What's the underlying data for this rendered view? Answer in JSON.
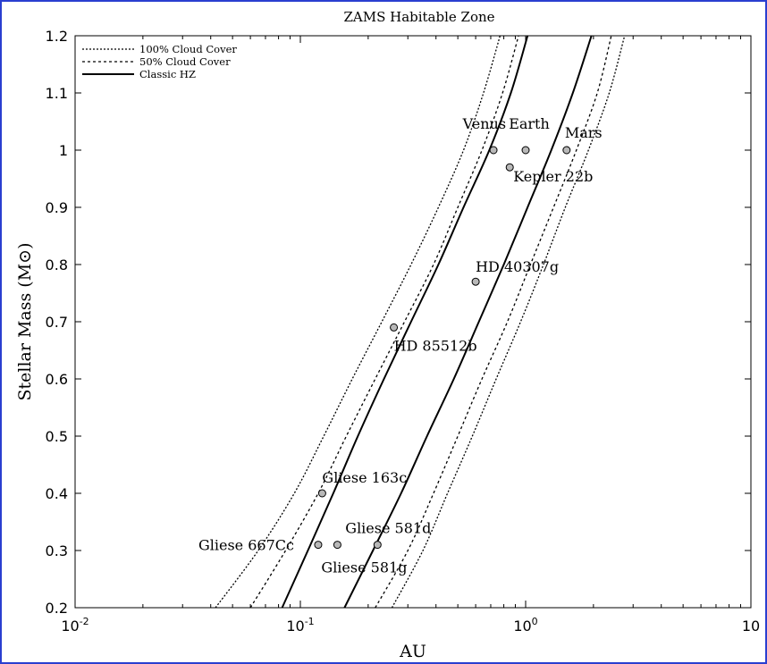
{
  "chart_data": {
    "type": "line",
    "title": "ZAMS Habitable Zone",
    "xlabel": "AU",
    "ylabel": "Stellar Mass (M⊙)",
    "xscale": "log",
    "xlim": [
      0.01,
      10
    ],
    "ylim": [
      0.2,
      1.2
    ],
    "x_ticks": [
      0.01,
      0.1,
      1,
      10
    ],
    "x_tick_labels": [
      {
        "base": "10",
        "exp": "-2"
      },
      {
        "base": "10",
        "exp": "-1"
      },
      {
        "base": "10",
        "exp": "0"
      },
      {
        "base": "10",
        "exp": ""
      }
    ],
    "y_ticks": [
      0.2,
      0.3,
      0.4,
      0.5,
      0.6,
      0.7,
      0.8,
      0.9,
      1.0,
      1.1,
      1.2
    ],
    "y_tick_labels": [
      "0.2",
      "0.3",
      "0.4",
      "0.5",
      "0.6",
      "0.7",
      "0.8",
      "0.9",
      "1",
      "1.1",
      "1.2"
    ],
    "grid": false,
    "legend_position": "top-left",
    "legend": [
      {
        "label": "100% Cloud Cover",
        "style": "dotted"
      },
      {
        "label": "50% Cloud Cover",
        "style": "dashed"
      },
      {
        "label": "Classic HZ",
        "style": "solid"
      }
    ],
    "series": [
      {
        "group": "100% Cloud Cover",
        "style": "dotted",
        "points": [
          [
            0.042,
            0.2
          ],
          [
            0.065,
            0.3
          ],
          [
            0.094,
            0.4
          ],
          [
            0.127,
            0.5
          ],
          [
            0.17,
            0.6
          ],
          [
            0.23,
            0.7
          ],
          [
            0.31,
            0.8
          ],
          [
            0.41,
            0.9
          ],
          [
            0.53,
            1.0
          ],
          [
            0.65,
            1.1
          ],
          [
            0.77,
            1.2
          ]
        ]
      },
      {
        "group": "100% Cloud Cover",
        "style": "dotted",
        "points": [
          [
            0.255,
            0.2
          ],
          [
            0.35,
            0.3
          ],
          [
            0.45,
            0.4
          ],
          [
            0.58,
            0.5
          ],
          [
            0.74,
            0.6
          ],
          [
            0.95,
            0.7
          ],
          [
            1.2,
            0.8
          ],
          [
            1.5,
            0.9
          ],
          [
            1.9,
            1.0
          ],
          [
            2.35,
            1.1
          ],
          [
            2.75,
            1.2
          ]
        ]
      },
      {
        "group": "50% Cloud Cover",
        "style": "dashed",
        "points": [
          [
            0.06,
            0.2
          ],
          [
            0.086,
            0.3
          ],
          [
            0.12,
            0.4
          ],
          [
            0.16,
            0.5
          ],
          [
            0.215,
            0.6
          ],
          [
            0.29,
            0.7
          ],
          [
            0.39,
            0.8
          ],
          [
            0.5,
            0.9
          ],
          [
            0.64,
            1.0
          ],
          [
            0.79,
            1.1
          ],
          [
            0.93,
            1.2
          ]
        ]
      },
      {
        "group": "50% Cloud Cover",
        "style": "dashed",
        "points": [
          [
            0.215,
            0.2
          ],
          [
            0.3,
            0.3
          ],
          [
            0.39,
            0.4
          ],
          [
            0.5,
            0.5
          ],
          [
            0.64,
            0.6
          ],
          [
            0.83,
            0.7
          ],
          [
            1.05,
            0.8
          ],
          [
            1.33,
            0.9
          ],
          [
            1.68,
            1.0
          ],
          [
            2.08,
            1.1
          ],
          [
            2.4,
            1.2
          ]
        ]
      },
      {
        "group": "Classic HZ",
        "style": "solid",
        "points": [
          [
            0.083,
            0.2
          ],
          [
            0.108,
            0.3
          ],
          [
            0.14,
            0.4
          ],
          [
            0.18,
            0.5
          ],
          [
            0.235,
            0.6
          ],
          [
            0.31,
            0.7
          ],
          [
            0.41,
            0.8
          ],
          [
            0.53,
            0.9
          ],
          [
            0.69,
            1.0
          ],
          [
            0.86,
            1.1
          ],
          [
            1.02,
            1.2
          ]
        ]
      },
      {
        "group": "Classic HZ",
        "style": "solid",
        "points": [
          [
            0.157,
            0.2
          ],
          [
            0.21,
            0.3
          ],
          [
            0.28,
            0.4
          ],
          [
            0.365,
            0.5
          ],
          [
            0.48,
            0.6
          ],
          [
            0.62,
            0.7
          ],
          [
            0.8,
            0.8
          ],
          [
            1.02,
            0.9
          ],
          [
            1.3,
            1.0
          ],
          [
            1.62,
            1.1
          ],
          [
            1.96,
            1.2
          ]
        ]
      }
    ],
    "planets": [
      {
        "name": "Venus",
        "x": 0.72,
        "y": 1.0,
        "anchor": "end",
        "dx": 14,
        "dy": -24
      },
      {
        "name": "Earth",
        "x": 1.0,
        "y": 1.0,
        "anchor": "middle",
        "dx": 4,
        "dy": -24
      },
      {
        "name": "Mars",
        "x": 1.52,
        "y": 1.0,
        "anchor": "start",
        "dx": -2,
        "dy": -14
      },
      {
        "name": "Kepler 22b",
        "x": 0.85,
        "y": 0.97,
        "anchor": "start",
        "dx": 4,
        "dy": 16
      },
      {
        "name": "HD 40307g",
        "x": 0.6,
        "y": 0.77,
        "anchor": "start",
        "dx": 0,
        "dy": -11
      },
      {
        "name": "HD 85512b",
        "x": 0.26,
        "y": 0.69,
        "anchor": "start",
        "dx": 0,
        "dy": 26
      },
      {
        "name": "Gliese 163c",
        "x": 0.125,
        "y": 0.4,
        "anchor": "start",
        "dx": 0,
        "dy": -12
      },
      {
        "name": "Gliese 667Cc",
        "x": 0.12,
        "y": 0.31,
        "anchor": "end",
        "dx": -27,
        "dy": 6
      },
      {
        "name": "Gliese 581d",
        "x": 0.22,
        "y": 0.31,
        "anchor": "start",
        "dx": -36,
        "dy": -13
      },
      {
        "name": "Gliese 581g",
        "x": 0.146,
        "y": 0.31,
        "anchor": "start",
        "dx": -18,
        "dy": 31
      }
    ]
  }
}
